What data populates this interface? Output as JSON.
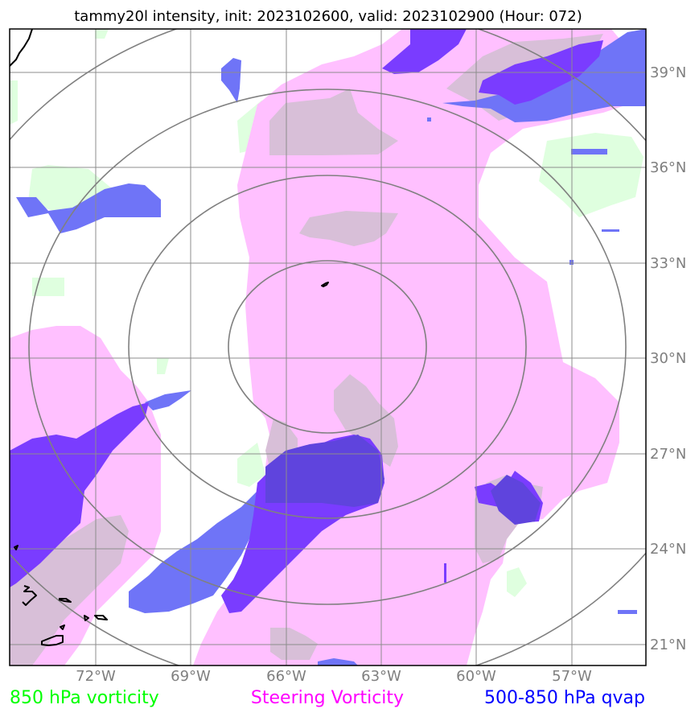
{
  "title": "tammy20l intensity, init: 2023102600, valid: 2023102900 (Hour: 072)",
  "lon_ticks": [
    "72°W",
    "69°W",
    "66°W",
    "63°W",
    "60°W",
    "57°W"
  ],
  "lat_ticks": [
    "39°N",
    "36°N",
    "33°N",
    "30°N",
    "27°N",
    "24°N",
    "21°N"
  ],
  "legend": [
    {
      "label": "850 hPa vorticity",
      "color": "#00ff00"
    },
    {
      "label": "Steering Vorticity",
      "color": "#ff00ff"
    },
    {
      "label": "500-850 hPa qvap",
      "color": "#0000ff"
    }
  ],
  "colors": {
    "vort850": "#dfffdf",
    "steering": "#ffc0ff",
    "overlap": "#d8bfd8",
    "qvap_light": "#6f74f7",
    "qvap_dark": "#7a3cff",
    "qvap_mid": "#5f44dd",
    "rings": "#808080",
    "grid": "#8c8c8c"
  }
}
